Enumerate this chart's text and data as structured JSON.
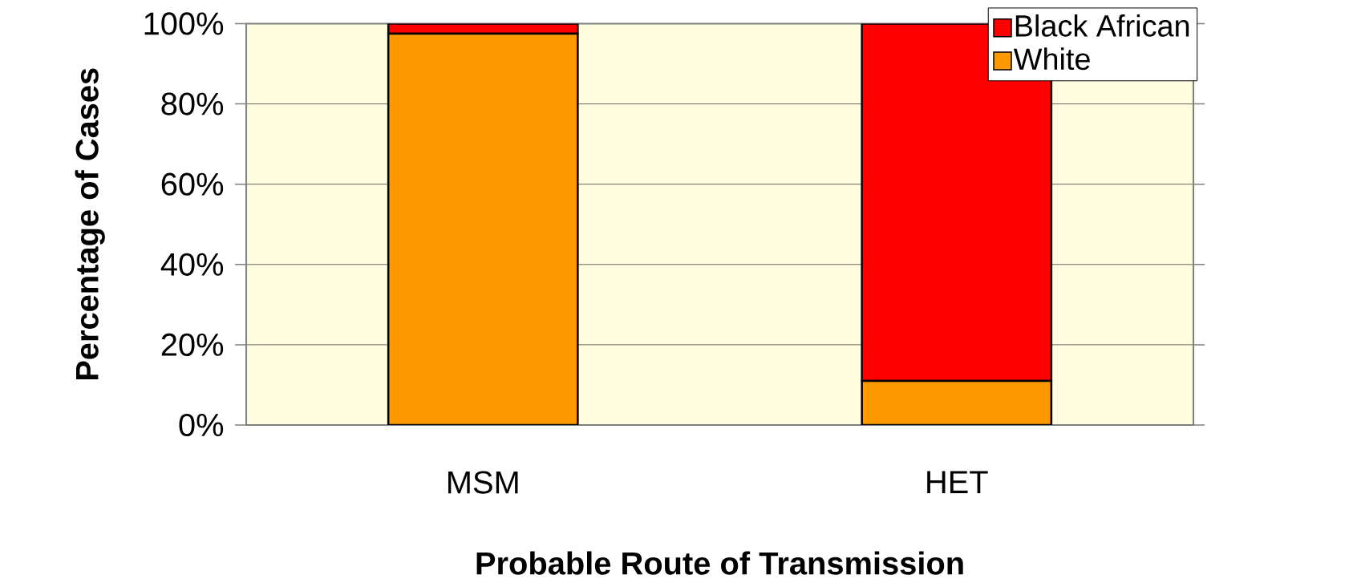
{
  "chart_data": {
    "type": "bar",
    "stacked": true,
    "xlabel": "Probable Route of Transmission",
    "ylabel": "Percentage of Cases",
    "categories": [
      "MSM",
      "HET"
    ],
    "series": [
      {
        "name": "White",
        "color": "#ff9900",
        "values": [
          97.5,
          11
        ]
      },
      {
        "name": "Black African",
        "color": "#ff0000",
        "values": [
          2.5,
          89
        ]
      }
    ],
    "ylim": [
      0,
      100
    ],
    "yticks": [
      {
        "value": 0,
        "label": "0%"
      },
      {
        "value": 20,
        "label": "20%"
      },
      {
        "value": 40,
        "label": "40%"
      },
      {
        "value": 60,
        "label": "60%"
      },
      {
        "value": 80,
        "label": "80%"
      },
      {
        "value": 100,
        "label": "100%"
      }
    ],
    "grid": "y",
    "legend": "top right"
  }
}
